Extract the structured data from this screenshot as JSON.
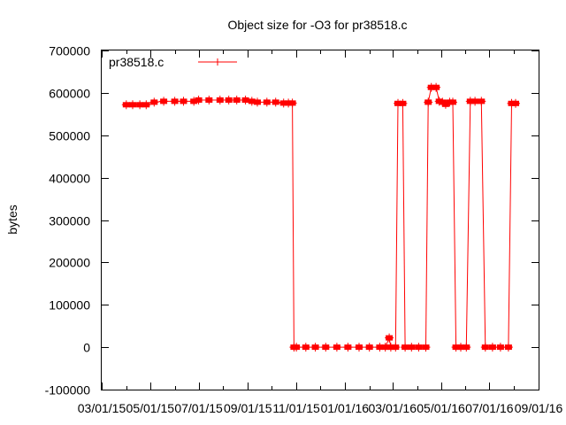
{
  "chart_data": {
    "type": "line",
    "title": "Object size for -O3 for pr38518.c",
    "xlabel": "",
    "ylabel": "bytes",
    "legend": {
      "position": "top-left"
    },
    "grid": false,
    "x_ticks": [
      "03/01/15",
      "05/01/15",
      "07/01/15",
      "09/01/15",
      "11/01/15",
      "01/01/16",
      "03/01/16",
      "05/01/16",
      "07/01/16",
      "09/01/16"
    ],
    "y_ticks": [
      "-100000",
      "0",
      "100000",
      "200000",
      "300000",
      "400000",
      "500000",
      "600000",
      "700000"
    ],
    "xlim": [
      "2015-03-01",
      "2016-09-01"
    ],
    "ylim": [
      -100000,
      700000
    ],
    "colors": {
      "series": "#ff0000",
      "axes": "#000000"
    },
    "series": [
      {
        "name": "pr38518.c",
        "points": [
          [
            "2015-04-01",
            572000
          ],
          [
            "2015-04-09",
            572000
          ],
          [
            "2015-04-18",
            572000
          ],
          [
            "2015-04-26",
            572000
          ],
          [
            "2015-05-06",
            578000
          ],
          [
            "2015-05-18",
            580000
          ],
          [
            "2015-06-01",
            580000
          ],
          [
            "2015-06-12",
            580000
          ],
          [
            "2015-06-25",
            580000
          ],
          [
            "2015-07-01",
            583000
          ],
          [
            "2015-07-14",
            583000
          ],
          [
            "2015-07-28",
            583000
          ],
          [
            "2015-08-08",
            583000
          ],
          [
            "2015-08-18",
            583000
          ],
          [
            "2015-08-29",
            583000
          ],
          [
            "2015-09-06",
            580000
          ],
          [
            "2015-09-13",
            578000
          ],
          [
            "2015-09-25",
            578000
          ],
          [
            "2015-10-06",
            578000
          ],
          [
            "2015-10-16",
            576000
          ],
          [
            "2015-10-22",
            576000
          ],
          [
            "2015-10-27",
            576000
          ],
          [
            "2015-10-29",
            0
          ],
          [
            "2015-11-01",
            0
          ],
          [
            "2015-11-13",
            0
          ],
          [
            "2015-11-25",
            0
          ],
          [
            "2015-12-08",
            0
          ],
          [
            "2015-12-22",
            0
          ],
          [
            "2016-01-05",
            0
          ],
          [
            "2016-01-19",
            0
          ],
          [
            "2016-02-01",
            0
          ],
          [
            "2016-02-14",
            0
          ],
          [
            "2016-02-21",
            0
          ],
          [
            "2016-02-26",
            22000
          ],
          [
            "2016-02-28",
            0
          ],
          [
            "2016-03-05",
            0
          ],
          [
            "2016-03-08",
            575000
          ],
          [
            "2016-03-14",
            575000
          ],
          [
            "2016-03-17",
            0
          ],
          [
            "2016-03-25",
            0
          ],
          [
            "2016-04-03",
            0
          ],
          [
            "2016-04-12",
            0
          ],
          [
            "2016-04-15",
            578000
          ],
          [
            "2016-04-19",
            613000
          ],
          [
            "2016-04-25",
            613000
          ],
          [
            "2016-04-29",
            580000
          ],
          [
            "2016-05-03",
            578000
          ],
          [
            "2016-05-07",
            573000
          ],
          [
            "2016-05-12",
            578000
          ],
          [
            "2016-05-16",
            578000
          ],
          [
            "2016-05-20",
            0
          ],
          [
            "2016-05-26",
            0
          ],
          [
            "2016-06-02",
            0
          ],
          [
            "2016-06-07",
            580000
          ],
          [
            "2016-06-13",
            580000
          ],
          [
            "2016-06-21",
            580000
          ],
          [
            "2016-06-26",
            0
          ],
          [
            "2016-07-05",
            0
          ],
          [
            "2016-07-15",
            0
          ],
          [
            "2016-07-25",
            0
          ],
          [
            "2016-07-29",
            575000
          ],
          [
            "2016-08-03",
            575000
          ]
        ]
      }
    ]
  }
}
